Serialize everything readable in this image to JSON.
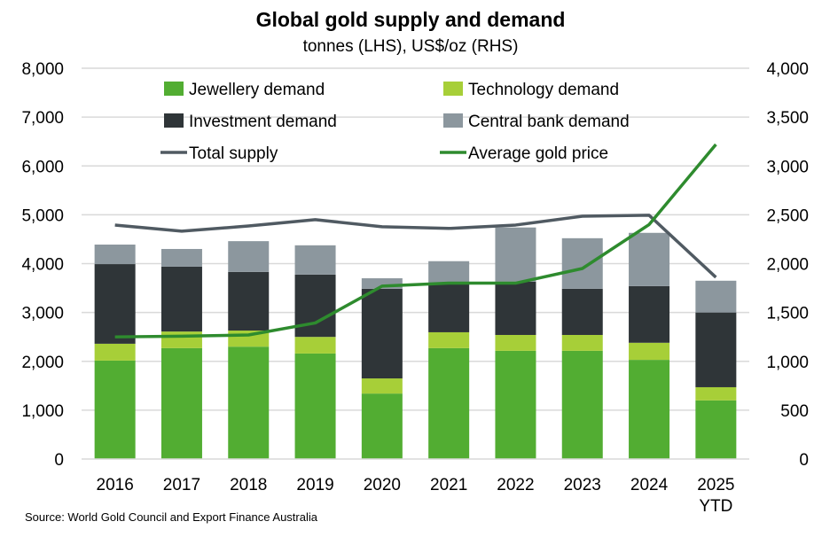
{
  "chart_data": {
    "type": "bar",
    "stacked": true,
    "title": "Global gold supply and demand",
    "subtitle": "tonnes (LHS), US$/oz (RHS)",
    "source": "Source: World Gold Council and Export Finance Australia",
    "categories": [
      "2016",
      "2017",
      "2018",
      "2019",
      "2020",
      "2021",
      "2022",
      "2023",
      "2024",
      "2025"
    ],
    "category_sublabels": [
      "",
      "",
      "",
      "",
      "",
      "",
      "",
      "",
      "",
      "YTD"
    ],
    "y_left": {
      "min": 0,
      "max": 8000,
      "ticks": [
        "0",
        "1,000",
        "2,000",
        "3,000",
        "4,000",
        "5,000",
        "6,000",
        "7,000",
        "8,000"
      ],
      "tick_values": [
        0,
        1000,
        2000,
        3000,
        4000,
        5000,
        6000,
        7000,
        8000
      ]
    },
    "y_right": {
      "min": 0,
      "max": 4000,
      "ticks": [
        "0",
        "500",
        "1,000",
        "1,500",
        "2,000",
        "2,500",
        "3,000",
        "3,500",
        "4,000"
      ],
      "tick_values": [
        0,
        500,
        1000,
        1500,
        2000,
        2500,
        3000,
        3500,
        4000
      ]
    },
    "grid": true,
    "legend_position": "top",
    "series": [
      {
        "name": "Jewellery demand",
        "type": "bar",
        "axis": "left",
        "color": "#52ad32",
        "values": [
          2015,
          2270,
          2300,
          2160,
          1340,
          2270,
          2215,
          2215,
          2030,
          1200
        ]
      },
      {
        "name": "Technology demand",
        "type": "bar",
        "axis": "left",
        "color": "#a7cf38",
        "values": [
          345,
          340,
          330,
          340,
          310,
          325,
          325,
          325,
          350,
          270
        ]
      },
      {
        "name": "Investment demand",
        "type": "bar",
        "axis": "left",
        "color": "#2f3538",
        "values": [
          1630,
          1330,
          1200,
          1275,
          1835,
          995,
          1090,
          945,
          1160,
          1530
        ]
      },
      {
        "name": "Central bank demand",
        "type": "bar",
        "axis": "left",
        "color": "#8c979e",
        "values": [
          400,
          360,
          630,
          600,
          215,
          460,
          1110,
          1035,
          1090,
          650
        ]
      },
      {
        "name": "Total supply",
        "type": "line",
        "axis": "left",
        "color": "#505a62",
        "values": [
          4790,
          4665,
          4770,
          4900,
          4755,
          4720,
          4790,
          4970,
          4990,
          3720
        ]
      },
      {
        "name": "Average gold price",
        "type": "line",
        "axis": "right",
        "color": "#2e8b2e",
        "values": [
          1250,
          1257,
          1270,
          1393,
          1770,
          1800,
          1800,
          1950,
          2400,
          3220
        ]
      }
    ]
  }
}
